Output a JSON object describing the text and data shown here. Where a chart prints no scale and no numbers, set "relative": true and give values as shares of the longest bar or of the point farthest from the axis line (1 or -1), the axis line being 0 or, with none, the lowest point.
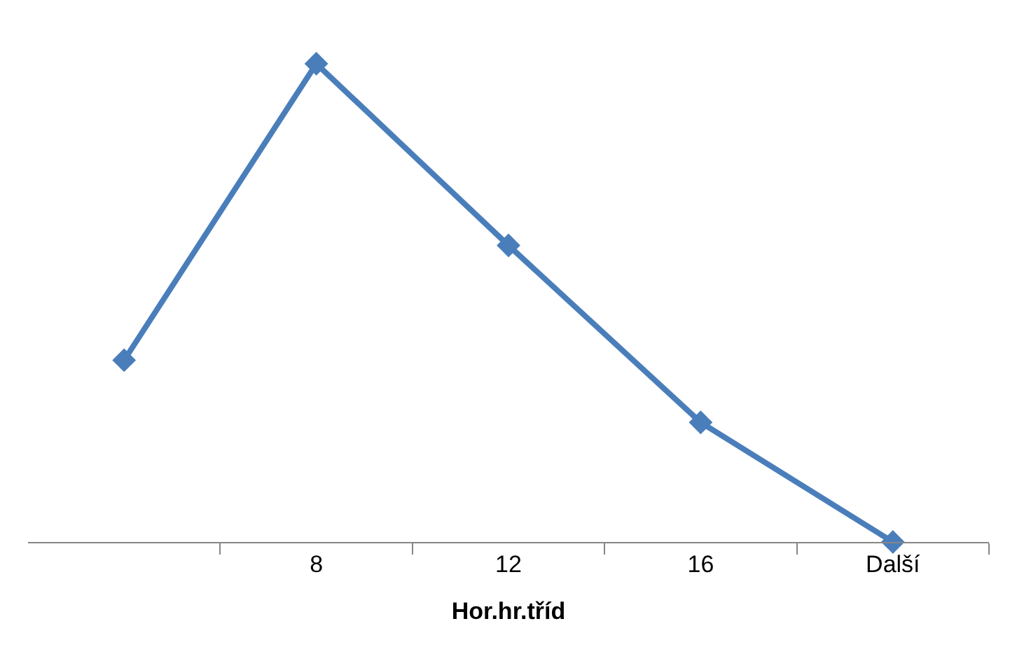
{
  "chart_data": {
    "type": "line",
    "relative": true,
    "xlabel": "Hor.hr.tříd",
    "categories": [
      null,
      "8",
      "12",
      "16",
      "Další"
    ],
    "series": [
      {
        "color": "#4a7ebb",
        "values": [
          0.38,
          1,
          0.62,
          0.25,
          0
        ]
      }
    ],
    "marker": "diamond",
    "grid": false
  }
}
